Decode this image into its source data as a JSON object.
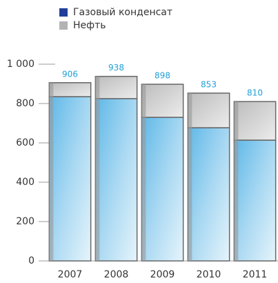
{
  "chart_data": {
    "type": "stacked_bar",
    "categories": [
      "2007",
      "2008",
      "2009",
      "2010",
      "2011"
    ],
    "series": [
      {
        "name": "Газовый конденсат",
        "color": "#1f3f9a",
        "values": [
          835,
          825,
          730,
          677,
          614
        ]
      },
      {
        "name": "Нефть",
        "color": "#b3b3b3",
        "values": [
          71,
          113,
          168,
          176,
          196
        ]
      }
    ],
    "totals": [
      906,
      938,
      898,
      853,
      810
    ],
    "ylim": [
      0,
      1000
    ],
    "yticks": [
      0,
      200,
      400,
      600,
      800,
      {
        "value": 1000,
        "label": "1 000"
      }
    ]
  }
}
